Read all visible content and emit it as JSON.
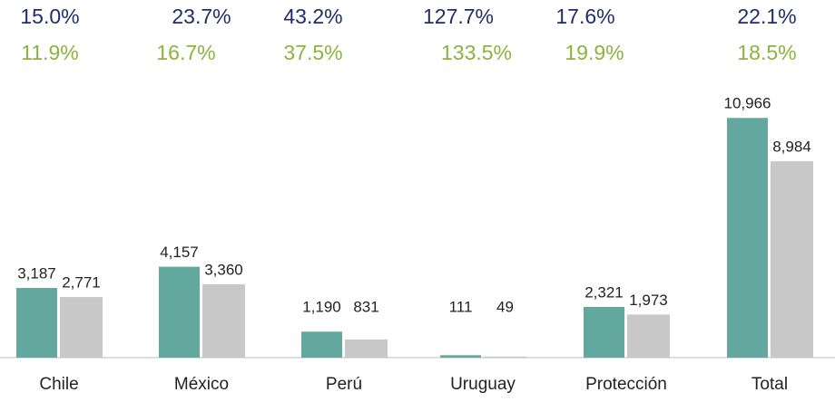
{
  "chart_data": {
    "type": "bar",
    "categories": [
      "Chile",
      "México",
      "Perú",
      "Uruguay",
      "Protección",
      "Total"
    ],
    "series": [
      {
        "color": "#62a89f",
        "values": [
          3187,
          4157,
          1190,
          111,
          2321,
          10966
        ],
        "value_labels": [
          "3,187",
          "4,157",
          "1,190",
          "111",
          "2,321",
          "10,966"
        ]
      },
      {
        "color": "#c8c8c8",
        "values": [
          2771,
          3360,
          831,
          49,
          1973,
          8984
        ],
        "value_labels": [
          "2,771",
          "3,360",
          "831",
          "49",
          "1,973",
          "8,984"
        ]
      }
    ],
    "annotations": [
      {
        "color": "#1f2d6b",
        "labels": [
          "15.0%",
          "23.7%",
          "43.2%",
          "127.7%",
          "17.6%",
          "22.1%"
        ]
      },
      {
        "color": "#8ab43e",
        "labels": [
          "11.9%",
          "16.7%",
          "37.5%",
          "133.5%",
          "19.9%",
          "18.5%"
        ]
      }
    ],
    "ylim": [
      0,
      14000
    ]
  }
}
